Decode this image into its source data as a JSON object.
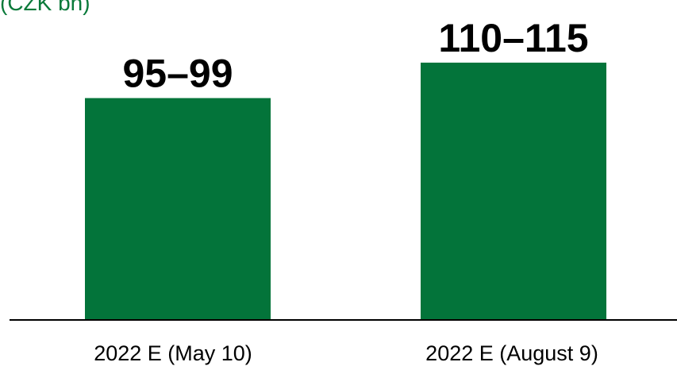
{
  "chart_data": {
    "type": "bar",
    "unit_label": "(CZK bn)",
    "categories": [
      "2022 E (May 10)",
      "2022 E (August 9)"
    ],
    "series": [
      {
        "values": [
          97,
          112.5
        ],
        "ranges": [
          [
            95,
            99
          ],
          [
            110,
            115
          ]
        ],
        "labels": [
          "95–99",
          "110–115"
        ],
        "color": "#03743a"
      }
    ],
    "ylim": [
      0,
      126
    ],
    "grid": false,
    "legend": "none",
    "axis_color": "#000000",
    "title": "",
    "xlabel": "",
    "ylabel": ""
  }
}
